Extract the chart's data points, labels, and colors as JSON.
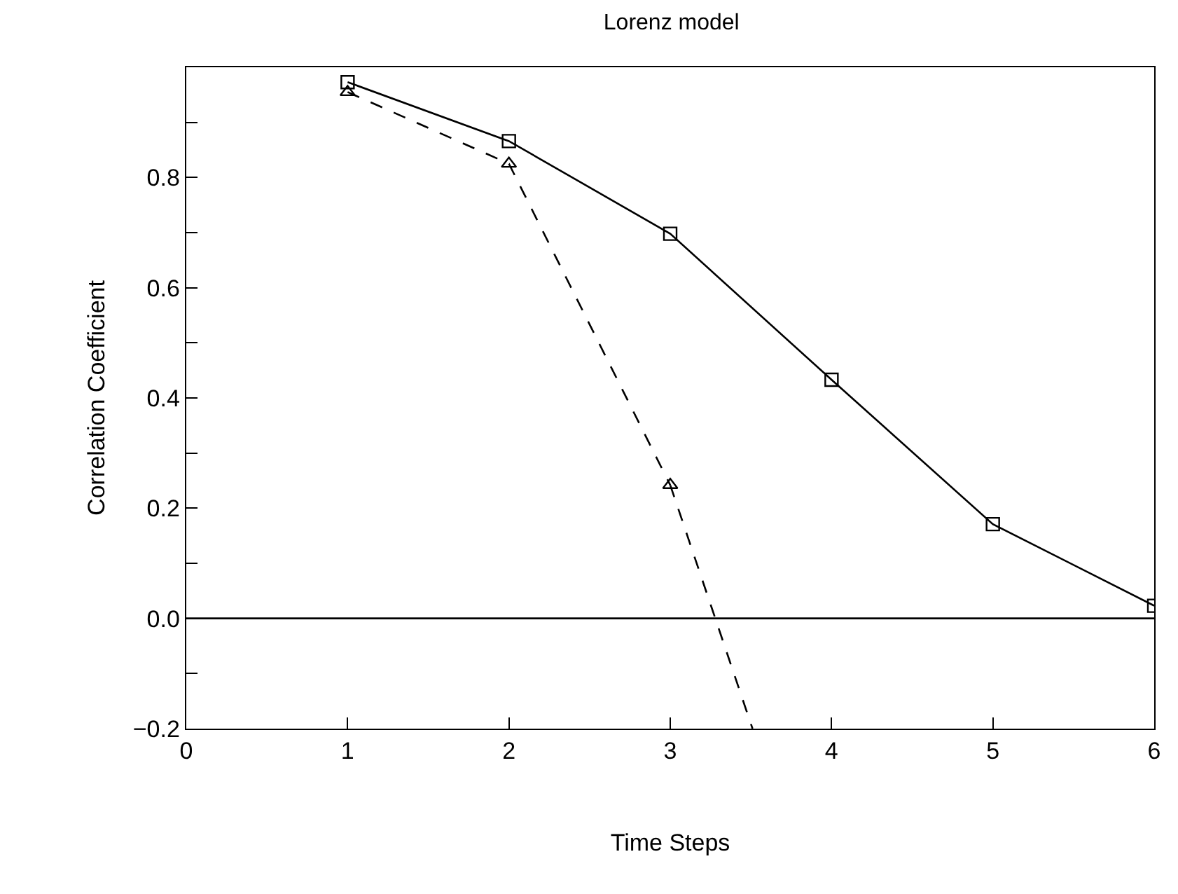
{
  "chart_data": {
    "type": "line",
    "title": "Lorenz model",
    "xlabel": "Time Steps",
    "ylabel": "Correlation Coefficient",
    "xlim": [
      0,
      6
    ],
    "xticks": [
      0,
      1,
      2,
      3,
      4,
      5,
      6
    ],
    "ylim": [
      -0.2,
      1.0
    ],
    "yticks": [
      {
        "value": -0.2,
        "label": "−0.2"
      },
      {
        "value": 0,
        "label": "0.0"
      },
      {
        "value": 0.1,
        "label": null
      },
      0.2,
      {
        "value": 0.3,
        "label": null
      },
      0.4,
      {
        "value": 0.5,
        "label": null
      },
      0.6,
      {
        "value": 0.7,
        "label": null
      },
      0.8,
      {
        "value": 0.9,
        "label": null
      },
      {
        "value": -0.1,
        "label": null
      }
    ],
    "series": [
      {
        "color": "#000000",
        "x": [
          1,
          2,
          3,
          4,
          5,
          6
        ],
        "values": [
          0.973,
          0.866,
          0.698,
          0.433,
          0.171,
          0.023
        ],
        "marker": "square",
        "line_style": "solid"
      },
      {
        "color": "#000000",
        "x": [
          1,
          2,
          3
        ],
        "values": [
          0.955,
          0.825,
          0.242
        ],
        "marker": "triangle",
        "line_style": "dashed"
      },
      {
        "color": "#000000",
        "x": [
          3,
          3.51
        ],
        "values": [
          0.242,
          -0.2
        ],
        "marker": "none",
        "line_style": "dashed"
      }
    ],
    "ref_lines": [
      {
        "axis": "y",
        "value": 0.0,
        "color": "#000000",
        "line_style": "solid"
      }
    ]
  }
}
